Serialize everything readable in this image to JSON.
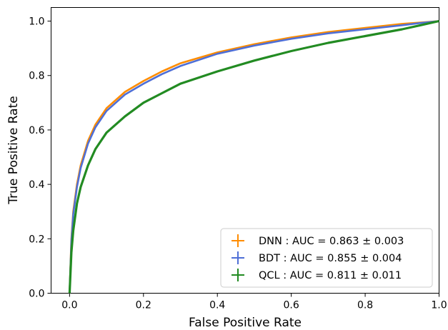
{
  "chart_data": {
    "type": "line",
    "xlabel": "False Positive Rate",
    "ylabel": "True Positive Rate",
    "xlim": [
      -0.05,
      1.0
    ],
    "ylim": [
      0.0,
      1.05
    ],
    "xticks": [
      "0.0",
      "0.2",
      "0.4",
      "0.6",
      "0.8",
      "1.0"
    ],
    "yticks": [
      "0.0",
      "0.2",
      "0.4",
      "0.6",
      "0.8",
      "1.0"
    ],
    "legend_position": "lower-right",
    "grid": false,
    "series": [
      {
        "name": "DNN : AUC = 0.863 ± 0.003",
        "color": "#ff8c00",
        "x": [
          0.0,
          0.005,
          0.01,
          0.02,
          0.03,
          0.05,
          0.07,
          0.1,
          0.15,
          0.2,
          0.25,
          0.3,
          0.4,
          0.5,
          0.6,
          0.7,
          0.8,
          0.9,
          0.95,
          1.0
        ],
        "y": [
          0.0,
          0.2,
          0.3,
          0.4,
          0.47,
          0.56,
          0.62,
          0.68,
          0.74,
          0.78,
          0.815,
          0.845,
          0.885,
          0.915,
          0.94,
          0.96,
          0.975,
          0.99,
          0.995,
          1.0
        ]
      },
      {
        "name": "BDT : AUC = 0.855 ± 0.004",
        "color": "#4f6fd6",
        "x": [
          0.0,
          0.005,
          0.01,
          0.02,
          0.03,
          0.05,
          0.07,
          0.1,
          0.15,
          0.2,
          0.25,
          0.3,
          0.4,
          0.5,
          0.6,
          0.7,
          0.8,
          0.9,
          0.95,
          1.0
        ],
        "y": [
          0.0,
          0.19,
          0.29,
          0.39,
          0.46,
          0.55,
          0.61,
          0.67,
          0.73,
          0.77,
          0.805,
          0.835,
          0.88,
          0.91,
          0.935,
          0.955,
          0.97,
          0.985,
          0.993,
          1.0
        ]
      },
      {
        "name": "QCL : AUC = 0.811 ± 0.011",
        "color": "#228b22",
        "x": [
          0.0,
          0.005,
          0.01,
          0.02,
          0.03,
          0.05,
          0.07,
          0.1,
          0.15,
          0.2,
          0.25,
          0.3,
          0.4,
          0.5,
          0.6,
          0.7,
          0.8,
          0.9,
          0.95,
          1.0
        ],
        "y": [
          0.0,
          0.15,
          0.23,
          0.33,
          0.39,
          0.47,
          0.53,
          0.59,
          0.65,
          0.7,
          0.735,
          0.77,
          0.815,
          0.855,
          0.89,
          0.92,
          0.945,
          0.97,
          0.985,
          1.0
        ]
      }
    ]
  }
}
